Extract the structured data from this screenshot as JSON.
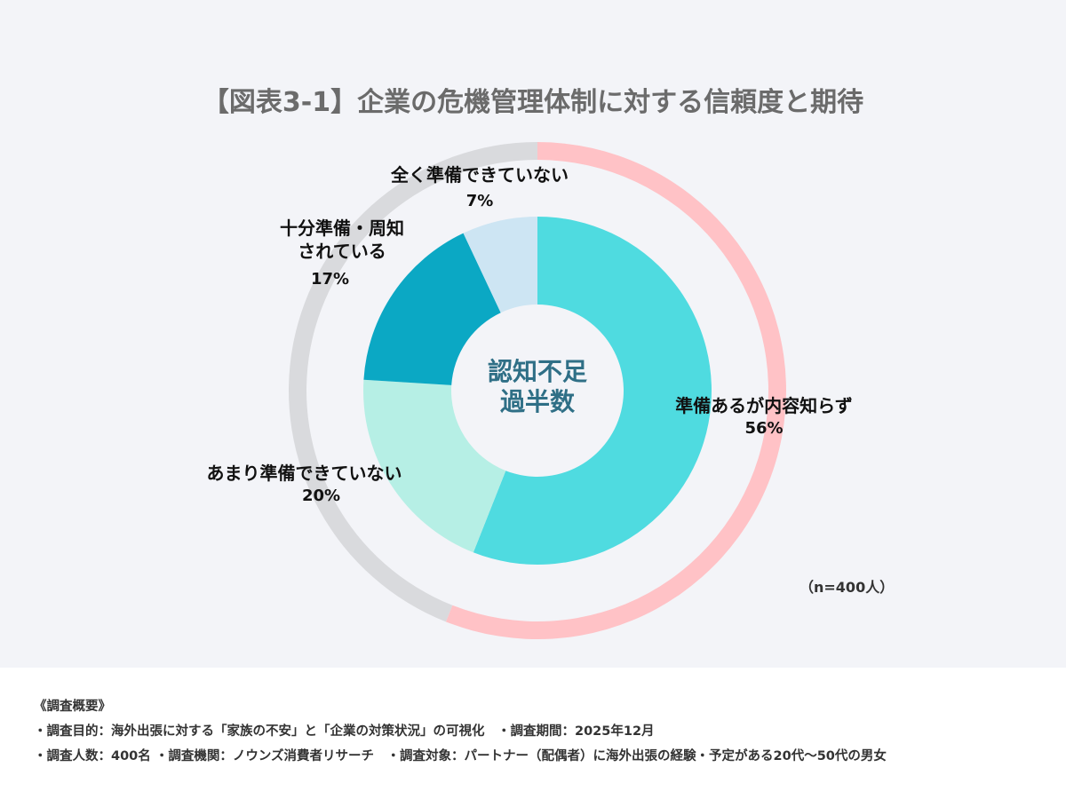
{
  "chart_data": {
    "type": "pie",
    "title": "【図表3-1】企業の危機管理体制に対する信頼度と期待",
    "center_label": [
      "認知不足",
      "過半数"
    ],
    "slices": [
      {
        "label": "準備あるが内容知らず",
        "value": 56,
        "value_label": "56%",
        "color": "#4fdbe0"
      },
      {
        "label": "あまり準備できていない",
        "value": 20,
        "value_label": "20%",
        "color": "#b6efe5"
      },
      {
        "label": "十分準備・周知されている",
        "label_lines": [
          "十分準備・周知",
          "されている"
        ],
        "value": 17,
        "value_label": "17%",
        "color": "#0ba8c4"
      },
      {
        "label": "全く準備できていない",
        "value": 7,
        "value_label": "7%",
        "color": "#cde5f3"
      }
    ],
    "outer_ring": [
      {
        "value": 56,
        "color": "#ffc2c6"
      },
      {
        "value": 44,
        "color": "#d9dadd"
      }
    ],
    "note": "（n=400人）"
  },
  "summary": {
    "heading": "《調査概要》",
    "lines": [
      "・調査目的：海外出張に対する「家族の不安」と「企業の対策状況」の可視化　・調査期間：2025年12月",
      "・調査人数：400名 ・調査機関：ノウンズ消費者リサーチ　・調査対象：パートナー（配偶者）に海外出張の経験・予定がある20代〜50代の男女"
    ]
  }
}
